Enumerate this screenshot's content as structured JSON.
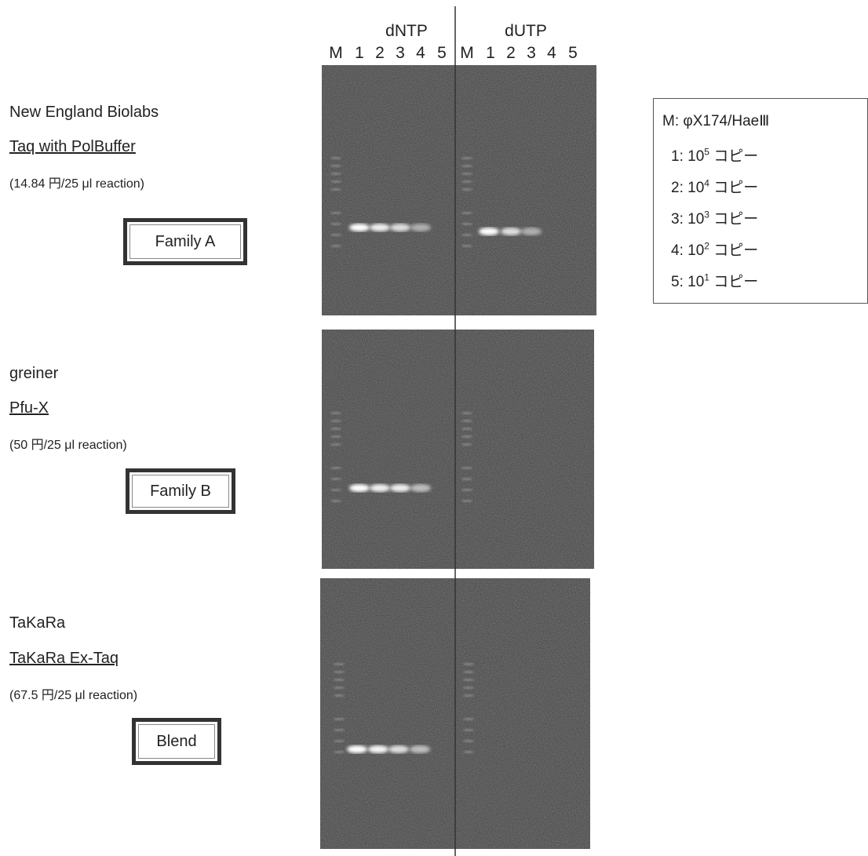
{
  "header": {
    "groups": [
      "dNTP",
      "dUTP"
    ],
    "lanes": [
      "M",
      "1",
      "2",
      "3",
      "4",
      "5",
      "M",
      "1",
      "2",
      "3",
      "4",
      "5"
    ]
  },
  "panels": [
    {
      "company": "New England Biolabs",
      "product": "Taq with PolBuffer",
      "price": "(14.84 円/25 μl reaction)",
      "family": "Family A"
    },
    {
      "company": "greiner",
      "product": "Pfu-X",
      "price": "(50 円/25 μl reaction)",
      "family": "Family B"
    },
    {
      "company": "TaKaRa",
      "product": "TaKaRa Ex-Taq",
      "price": "(67.5 円/25 μl reaction)",
      "family": "Blend"
    }
  ],
  "legend": {
    "marker": "M:  φX174/HaeⅢ",
    "items": [
      {
        "prefix": "1: 10",
        "sup": "5",
        "suffix": " コピー"
      },
      {
        "prefix": "2: 10",
        "sup": "4",
        "suffix": " コピー"
      },
      {
        "prefix": "3: 10",
        "sup": "3",
        "suffix": " コピー"
      },
      {
        "prefix": "4: 10",
        "sup": "2",
        "suffix": " コピー"
      },
      {
        "prefix": "5: 10",
        "sup": "1",
        "suffix": " コピー"
      }
    ]
  }
}
